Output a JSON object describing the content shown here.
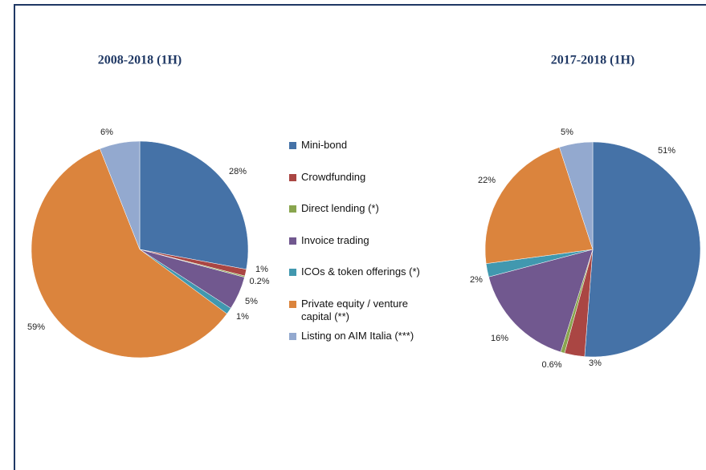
{
  "chart_data": [
    {
      "type": "pie",
      "title": "2008-2018 (1H)",
      "categories": [
        "Mini-bond",
        "Crowdfunding",
        "Direct lending (*)",
        "Invoice trading",
        "ICOs & token offerings (*)",
        "Private equity / venture capital (**)",
        "Listing on AIM Italia (***)"
      ],
      "values": [
        28,
        1,
        0.2,
        5,
        1,
        59,
        6
      ],
      "value_labels": [
        "28%",
        "1%",
        "0.2%",
        "5%",
        "1%",
        "59%",
        "6%"
      ],
      "colors": [
        "#4572a7",
        "#aa4643",
        "#89a54e",
        "#71588f",
        "#4198af",
        "#db843d",
        "#93a9cf"
      ],
      "legend": "center"
    },
    {
      "type": "pie",
      "title": "2017-2018 (1H)",
      "categories": [
        "Mini-bond",
        "Crowdfunding",
        "Direct lending (*)",
        "Invoice trading",
        "ICOs & token offerings (*)",
        "Private equity / venture capital (**)",
        "Listing on AIM Italia (***)"
      ],
      "values": [
        51,
        3,
        0.6,
        16,
        2,
        22,
        5
      ],
      "value_labels": [
        "51%",
        "3%",
        "0.6%",
        "16%",
        "2%",
        "22%",
        "5%"
      ],
      "colors": [
        "#4572a7",
        "#aa4643",
        "#89a54e",
        "#71588f",
        "#4198af",
        "#db843d",
        "#93a9cf"
      ]
    }
  ]
}
